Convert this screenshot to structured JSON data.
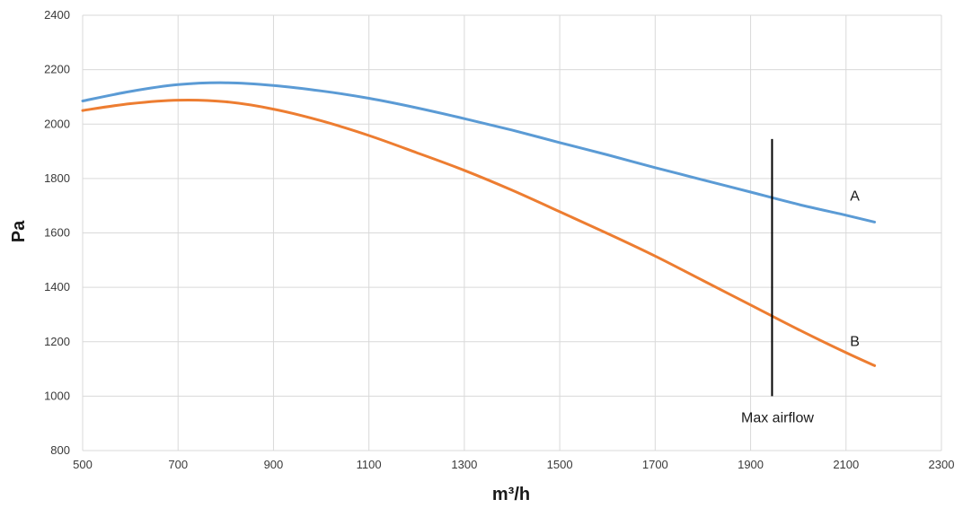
{
  "chart_data": {
    "type": "line",
    "title": "",
    "xlabel": "m³/h",
    "ylabel": "Pa",
    "xlim": [
      500,
      2300
    ],
    "ylim": [
      800,
      2400
    ],
    "xticks": [
      500,
      700,
      900,
      1100,
      1300,
      1500,
      1700,
      1900,
      2100,
      2300
    ],
    "yticks": [
      800,
      1000,
      1200,
      1400,
      1600,
      1800,
      2000,
      2200,
      2400
    ],
    "grid": true,
    "legend": "none",
    "series": [
      {
        "name": "A",
        "color": "#5b9bd5",
        "x": [
          500,
          600,
          700,
          800,
          900,
          1000,
          1100,
          1200,
          1300,
          1400,
          1500,
          1600,
          1700,
          1800,
          1900,
          2000,
          2100,
          2160
        ],
        "y": [
          2085,
          2120,
          2145,
          2152,
          2142,
          2122,
          2095,
          2060,
          2020,
          1978,
          1932,
          1887,
          1840,
          1795,
          1750,
          1705,
          1665,
          1640
        ]
      },
      {
        "name": "B",
        "color": "#ed7d31",
        "x": [
          500,
          600,
          700,
          800,
          900,
          1000,
          1100,
          1200,
          1300,
          1400,
          1500,
          1600,
          1700,
          1800,
          1900,
          2000,
          2100,
          2160
        ],
        "y": [
          2050,
          2075,
          2088,
          2082,
          2055,
          2012,
          1958,
          1895,
          1830,
          1757,
          1678,
          1598,
          1515,
          1425,
          1335,
          1245,
          1160,
          1112
        ]
      }
    ],
    "annotations": {
      "max_airflow": {
        "label": "Max airflow",
        "x": 1945,
        "y_from": 1000,
        "y_to": 1945
      }
    }
  }
}
